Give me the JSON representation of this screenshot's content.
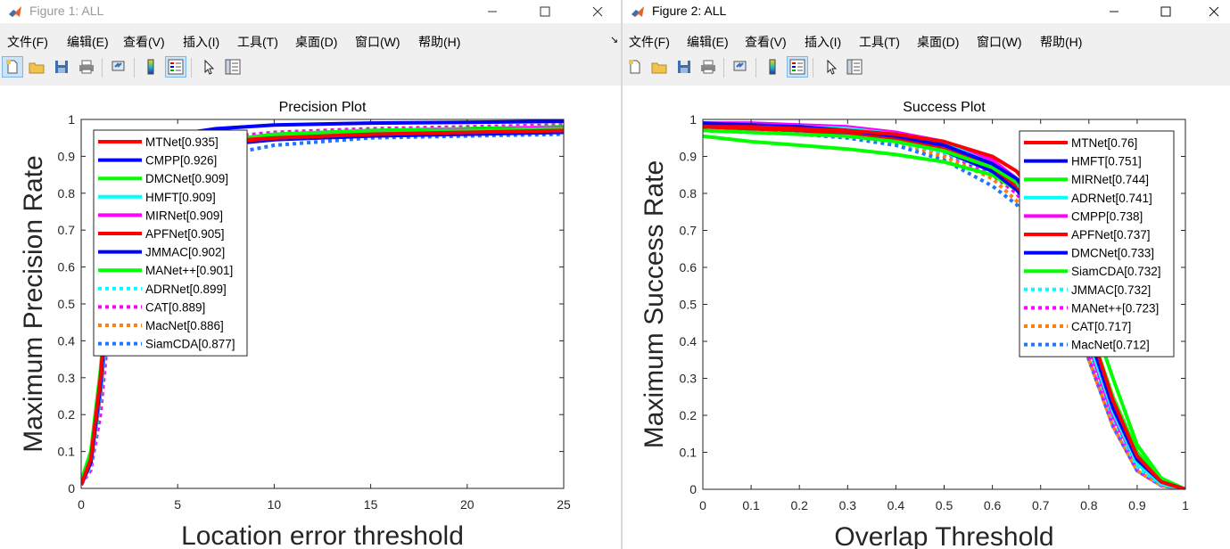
{
  "colors": {
    "red": "#ff0000",
    "blue": "#0000ff",
    "green": "#00ff00",
    "cyan": "#00ffff",
    "magenta": "#ff00ff",
    "orange": "#ff7f0e",
    "dodgerblue": "#1f77ff"
  },
  "windows": [
    {
      "title": "Figure 1: ALL",
      "menu": [
        "文件(F)",
        "编辑(E)",
        "查看(V)",
        "插入(I)",
        "工具(T)",
        "桌面(D)",
        "窗口(W)",
        "帮助(H)"
      ],
      "toolbar_icons": [
        "new-figure-icon",
        "open-file-icon",
        "save-icon",
        "print-icon",
        "link-icon",
        "colorbar-icon",
        "legend-icon",
        "pointer-icon",
        "property-editor-icon"
      ],
      "axes_toolbar_icons": [
        "brush-icon",
        "data-tips-icon",
        "export-icon",
        "pan-icon",
        "zoom-in-icon",
        "zoom-out-icon",
        "home-icon"
      ]
    },
    {
      "title": "Figure 2: ALL",
      "menu": [
        "文件(F)",
        "编辑(E)",
        "查看(V)",
        "插入(I)",
        "工具(T)",
        "桌面(D)",
        "窗口(W)",
        "帮助(H)"
      ],
      "toolbar_icons": [
        "new-figure-icon",
        "open-file-icon",
        "save-icon",
        "print-icon",
        "link-icon",
        "colorbar-icon",
        "legend-icon",
        "pointer-icon",
        "property-editor-icon"
      ]
    }
  ],
  "chart_data": [
    {
      "type": "line",
      "title": "Precision Plot",
      "xlabel": "Location error threshold",
      "ylabel": "Maximum Precision Rate",
      "xlim": [
        0,
        25
      ],
      "ylim": [
        0,
        1
      ],
      "xticks": [
        "0",
        "5",
        "10",
        "15",
        "20",
        "25"
      ],
      "yticks": [
        "0",
        "0.1",
        "0.2",
        "0.3",
        "0.4",
        "0.5",
        "0.6",
        "0.7",
        "0.8",
        "0.9",
        "1"
      ],
      "grid": false,
      "legend_position": "top-left",
      "x": [
        0,
        0.5,
        1,
        1.5,
        2,
        2.5,
        3,
        4,
        5,
        7,
        10,
        15,
        20,
        25
      ],
      "series": [
        {
          "name": "MTNet[0.935]",
          "color": "red",
          "style": "solid",
          "values": [
            0.01,
            0.08,
            0.3,
            0.62,
            0.8,
            0.87,
            0.9,
            0.92,
            0.93,
            0.94,
            0.95,
            0.96,
            0.965,
            0.97
          ]
        },
        {
          "name": "CMPP[0.926]",
          "color": "blue",
          "style": "solid",
          "values": [
            0.01,
            0.07,
            0.28,
            0.6,
            0.79,
            0.87,
            0.91,
            0.94,
            0.96,
            0.975,
            0.985,
            0.99,
            0.992,
            0.995
          ]
        },
        {
          "name": "DMCNet[0.909]",
          "color": "green",
          "style": "solid",
          "values": [
            0.02,
            0.1,
            0.32,
            0.62,
            0.78,
            0.85,
            0.88,
            0.91,
            0.925,
            0.94,
            0.955,
            0.965,
            0.97,
            0.975
          ]
        },
        {
          "name": "HMFT[0.909]",
          "color": "cyan",
          "style": "solid",
          "values": [
            0.01,
            0.07,
            0.27,
            0.57,
            0.75,
            0.83,
            0.87,
            0.9,
            0.92,
            0.94,
            0.955,
            0.965,
            0.97,
            0.975
          ]
        },
        {
          "name": "MIRNet[0.909]",
          "color": "magenta",
          "style": "solid",
          "values": [
            0.01,
            0.07,
            0.27,
            0.57,
            0.75,
            0.83,
            0.87,
            0.9,
            0.92,
            0.94,
            0.955,
            0.965,
            0.972,
            0.978
          ]
        },
        {
          "name": "APFNet[0.905]",
          "color": "red",
          "style": "solid",
          "values": [
            0.01,
            0.07,
            0.26,
            0.56,
            0.74,
            0.82,
            0.86,
            0.9,
            0.92,
            0.935,
            0.95,
            0.96,
            0.966,
            0.97
          ]
        },
        {
          "name": "JMMAC[0.902]",
          "color": "blue",
          "style": "solid",
          "values": [
            0.01,
            0.07,
            0.26,
            0.55,
            0.73,
            0.82,
            0.86,
            0.89,
            0.91,
            0.93,
            0.945,
            0.955,
            0.96,
            0.965
          ]
        },
        {
          "name": "MANet++[0.901]",
          "color": "green",
          "style": "solid",
          "values": [
            0.01,
            0.07,
            0.26,
            0.55,
            0.73,
            0.82,
            0.86,
            0.9,
            0.92,
            0.94,
            0.96,
            0.97,
            0.975,
            0.98
          ]
        },
        {
          "name": "ADRNet[0.899]",
          "color": "cyan",
          "style": "dotted",
          "values": [
            0.01,
            0.06,
            0.24,
            0.53,
            0.72,
            0.81,
            0.86,
            0.9,
            0.92,
            0.94,
            0.955,
            0.965,
            0.97,
            0.975
          ]
        },
        {
          "name": "CAT[0.889]",
          "color": "magenta",
          "style": "dotted",
          "values": [
            0.01,
            0.05,
            0.2,
            0.48,
            0.68,
            0.79,
            0.85,
            0.9,
            0.93,
            0.95,
            0.965,
            0.975,
            0.98,
            0.985
          ]
        },
        {
          "name": "MacNet[0.886]",
          "color": "orange",
          "style": "dotted",
          "values": [
            0.01,
            0.05,
            0.22,
            0.5,
            0.69,
            0.79,
            0.84,
            0.89,
            0.92,
            0.94,
            0.96,
            0.97,
            0.975,
            0.98
          ]
        },
        {
          "name": "SiamCDA[0.877]",
          "color": "dodgerblue",
          "style": "dotted",
          "values": [
            0.01,
            0.06,
            0.24,
            0.52,
            0.7,
            0.79,
            0.83,
            0.86,
            0.88,
            0.9,
            0.93,
            0.95,
            0.955,
            0.96
          ]
        }
      ]
    },
    {
      "type": "line",
      "title": "Success Plot",
      "xlabel": "Overlap Threshold",
      "ylabel": "Maximum Success Rate",
      "xlim": [
        0,
        1
      ],
      "ylim": [
        0,
        1
      ],
      "xticks": [
        "0",
        "0.1",
        "0.2",
        "0.3",
        "0.4",
        "0.5",
        "0.6",
        "0.7",
        "0.8",
        "0.9",
        "1"
      ],
      "yticks": [
        "0",
        "0.1",
        "0.2",
        "0.3",
        "0.4",
        "0.5",
        "0.6",
        "0.7",
        "0.8",
        "0.9",
        "1"
      ],
      "grid": false,
      "legend_position": "top-right",
      "x": [
        0,
        0.1,
        0.2,
        0.3,
        0.4,
        0.5,
        0.6,
        0.65,
        0.7,
        0.75,
        0.8,
        0.85,
        0.9,
        0.95,
        1
      ],
      "series": [
        {
          "name": "MTNet[0.76]",
          "color": "red",
          "style": "solid",
          "values": [
            0.98,
            0.98,
            0.975,
            0.97,
            0.96,
            0.94,
            0.9,
            0.86,
            0.78,
            0.64,
            0.44,
            0.24,
            0.09,
            0.02,
            0
          ]
        },
        {
          "name": "HMFT[0.751]",
          "color": "blue",
          "style": "solid",
          "values": [
            0.99,
            0.985,
            0.98,
            0.97,
            0.955,
            0.93,
            0.88,
            0.84,
            0.76,
            0.62,
            0.42,
            0.22,
            0.08,
            0.02,
            0
          ]
        },
        {
          "name": "MIRNet[0.744]",
          "color": "green",
          "style": "solid",
          "values": [
            0.97,
            0.965,
            0.96,
            0.955,
            0.94,
            0.915,
            0.87,
            0.83,
            0.77,
            0.66,
            0.49,
            0.3,
            0.12,
            0.03,
            0
          ]
        },
        {
          "name": "ADRNet[0.741]",
          "color": "cyan",
          "style": "solid",
          "values": [
            0.99,
            0.985,
            0.98,
            0.975,
            0.96,
            0.935,
            0.88,
            0.83,
            0.74,
            0.6,
            0.4,
            0.21,
            0.07,
            0.015,
            0
          ]
        },
        {
          "name": "CMPP[0.738]",
          "color": "magenta",
          "style": "solid",
          "values": [
            0.99,
            0.99,
            0.985,
            0.98,
            0.965,
            0.94,
            0.89,
            0.84,
            0.75,
            0.6,
            0.39,
            0.2,
            0.07,
            0.015,
            0
          ]
        },
        {
          "name": "APFNet[0.737]",
          "color": "red",
          "style": "solid",
          "values": [
            0.98,
            0.975,
            0.97,
            0.965,
            0.95,
            0.92,
            0.87,
            0.82,
            0.74,
            0.6,
            0.4,
            0.21,
            0.07,
            0.015,
            0
          ]
        },
        {
          "name": "DMCNet[0.733]",
          "color": "blue",
          "style": "solid",
          "values": [
            0.98,
            0.975,
            0.97,
            0.96,
            0.945,
            0.915,
            0.86,
            0.81,
            0.73,
            0.59,
            0.4,
            0.21,
            0.07,
            0.015,
            0
          ]
        },
        {
          "name": "SiamCDA[0.732]",
          "color": "green",
          "style": "solid",
          "values": [
            0.955,
            0.94,
            0.93,
            0.92,
            0.905,
            0.885,
            0.85,
            0.81,
            0.74,
            0.62,
            0.44,
            0.25,
            0.1,
            0.025,
            0
          ]
        },
        {
          "name": "JMMAC[0.732]",
          "color": "cyan",
          "style": "dotted",
          "values": [
            0.97,
            0.965,
            0.96,
            0.955,
            0.94,
            0.91,
            0.86,
            0.81,
            0.72,
            0.58,
            0.38,
            0.19,
            0.06,
            0.012,
            0
          ]
        },
        {
          "name": "MANet++[0.723]",
          "color": "magenta",
          "style": "dotted",
          "values": [
            0.98,
            0.975,
            0.97,
            0.96,
            0.945,
            0.91,
            0.85,
            0.8,
            0.71,
            0.56,
            0.36,
            0.18,
            0.055,
            0.01,
            0
          ]
        },
        {
          "name": "CAT[0.717]",
          "color": "orange",
          "style": "dotted",
          "values": [
            0.975,
            0.97,
            0.965,
            0.955,
            0.94,
            0.9,
            0.84,
            0.78,
            0.69,
            0.54,
            0.35,
            0.17,
            0.05,
            0.01,
            0
          ]
        },
        {
          "name": "MacNet[0.712]",
          "color": "dodgerblue",
          "style": "dotted",
          "values": [
            0.97,
            0.965,
            0.96,
            0.95,
            0.93,
            0.89,
            0.82,
            0.77,
            0.68,
            0.54,
            0.35,
            0.17,
            0.05,
            0.01,
            0
          ]
        }
      ]
    }
  ]
}
